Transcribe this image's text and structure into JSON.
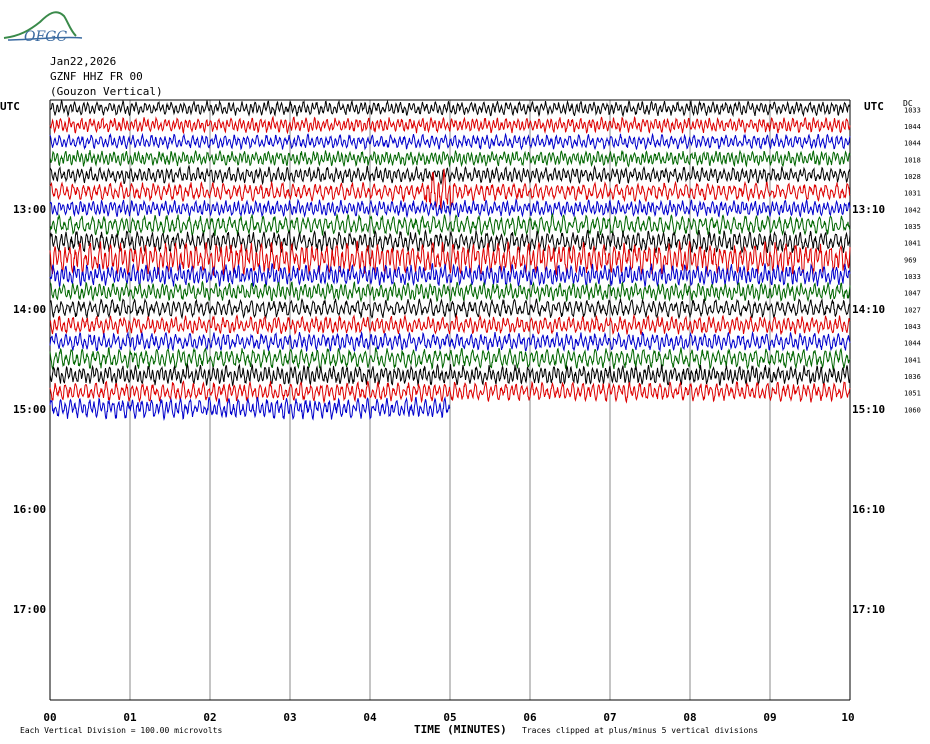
{
  "header": {
    "logo_text": "OFGC",
    "date": "Jan22,2026",
    "station": "GZNF HHZ FR 00",
    "location": "(Gouzon Vertical)"
  },
  "left_axis": {
    "label": "UTC",
    "hour_labels": [
      "13:00",
      "14:00",
      "15:00",
      "16:00",
      "17:00"
    ]
  },
  "right_axis": {
    "label": "UTC",
    "dc_label": "DC",
    "hour_labels": [
      "13:10",
      "14:10",
      "15:10",
      "16:10",
      "17:10"
    ]
  },
  "x_axis": {
    "label": "TIME (MINUTES)",
    "ticks": [
      "00",
      "01",
      "02",
      "03",
      "04",
      "05",
      "06",
      "07",
      "08",
      "09",
      "10"
    ]
  },
  "footer": {
    "division_note": "Each Vertical Division =  100.00 microvolts",
    "clip_note": "Traces clipped at plus/minus 5 vertical divisions"
  },
  "colors": {
    "cycle": [
      "#000000",
      "#dd0000",
      "#0000cc",
      "#006600"
    ],
    "grid": "#888888"
  },
  "chart_data": {
    "type": "line",
    "title": "",
    "xlabel": "TIME (MINUTES)",
    "xlim": [
      0,
      10
    ],
    "lines_per_hour": 6,
    "minutes_per_line": 10,
    "dc_offsets": [
      1033,
      1044,
      1044,
      1018,
      1028,
      1031,
      1042,
      1035,
      1041,
      969,
      1033,
      1047,
      1027,
      1043,
      1044,
      1041,
      1036,
      1051,
      1060
    ],
    "line_amplitude": [
      0.4,
      0.42,
      0.4,
      0.42,
      0.45,
      0.5,
      0.45,
      0.55,
      0.6,
      0.9,
      0.6,
      0.5,
      0.5,
      0.5,
      0.5,
      0.55,
      0.55,
      0.55,
      0.6
    ],
    "last_line_end_minute": 5,
    "events": [
      {
        "line": 5,
        "minute": 4.8,
        "type": "spike"
      },
      {
        "line": 9,
        "minute": 0,
        "type": "disturbance"
      }
    ]
  }
}
